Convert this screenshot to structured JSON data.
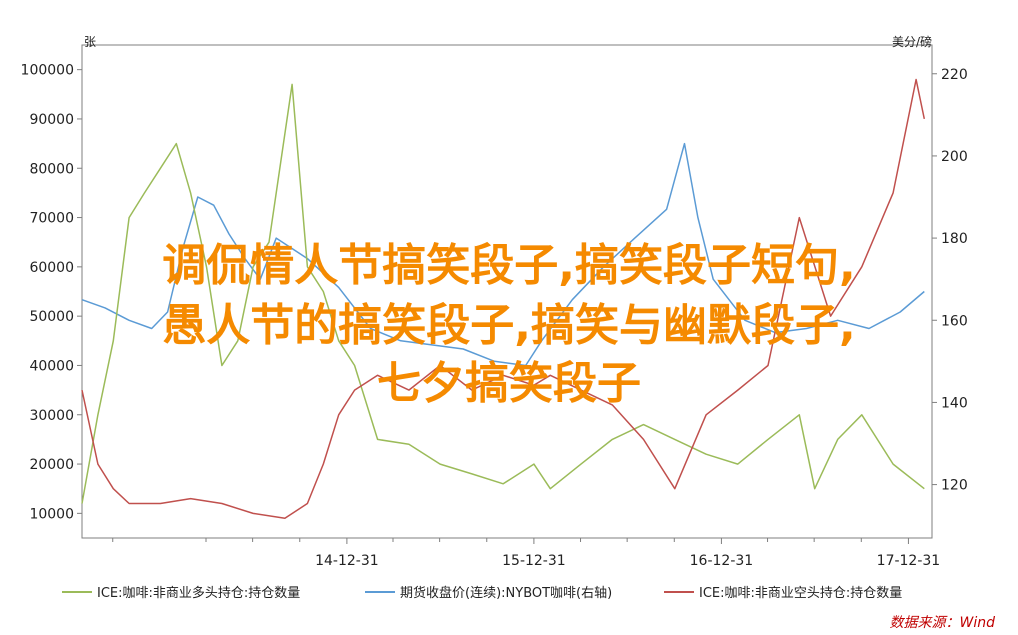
{
  "overlay": {
    "line1": "调侃情人节搞笑段子,搞笑段子短句,",
    "line2": "愚人节的搞笑段子,搞笑与幽默段子,",
    "line3": "七夕搞笑段子"
  },
  "source": "数据来源：Wind",
  "chart_data": {
    "type": "line",
    "x_ticks": [
      "14-12-31",
      "15-12-31",
      "16-12-31",
      "17-12-31"
    ],
    "xlim": [
      "2013-08-01",
      "2018-02-15"
    ],
    "left_axis": {
      "unit": "张",
      "ylim": [
        5000,
        105000
      ],
      "ticks": [
        10000,
        20000,
        30000,
        40000,
        50000,
        60000,
        70000,
        80000,
        90000,
        100000
      ]
    },
    "right_axis": {
      "unit": "美分/磅",
      "ylim": [
        107,
        227
      ],
      "ticks": [
        120,
        140,
        160,
        180,
        200,
        220
      ]
    },
    "series": [
      {
        "name": "期货收盘价(连续):NYBOT咖啡(右轴)",
        "axis": "right",
        "color": "#5b9bd5",
        "points": [
          [
            "2013-08-01",
            165
          ],
          [
            "2013-09-15",
            163
          ],
          [
            "2013-11-01",
            160
          ],
          [
            "2013-12-15",
            158
          ],
          [
            "2014-01-15",
            162
          ],
          [
            "2014-02-15",
            178
          ],
          [
            "2014-03-15",
            190
          ],
          [
            "2014-04-15",
            188
          ],
          [
            "2014-05-15",
            181
          ],
          [
            "2014-06-15",
            175
          ],
          [
            "2014-07-15",
            170
          ],
          [
            "2014-08-15",
            180
          ],
          [
            "2014-10-15",
            175
          ],
          [
            "2014-12-15",
            168
          ],
          [
            "2015-02-15",
            158
          ],
          [
            "2015-04-15",
            155
          ],
          [
            "2015-06-15",
            154
          ],
          [
            "2015-08-15",
            153
          ],
          [
            "2015-10-15",
            150
          ],
          [
            "2015-12-15",
            149
          ],
          [
            "2016-01-15",
            155
          ],
          [
            "2016-03-15",
            165
          ],
          [
            "2016-05-15",
            173
          ],
          [
            "2016-07-15",
            180
          ],
          [
            "2016-09-15",
            187
          ],
          [
            "2016-10-20",
            203
          ],
          [
            "2016-11-15",
            185
          ],
          [
            "2016-12-15",
            170
          ],
          [
            "2017-02-15",
            160
          ],
          [
            "2017-04-15",
            157
          ],
          [
            "2017-06-15",
            158
          ],
          [
            "2017-08-15",
            160
          ],
          [
            "2017-10-15",
            158
          ],
          [
            "2017-12-15",
            162
          ],
          [
            "2018-01-31",
            167
          ]
        ]
      },
      {
        "name": "ICE:咖啡:非商业多头持仓:持仓数量",
        "axis": "left",
        "color": "#9bbb59",
        "points": [
          [
            "2013-08-01",
            12000
          ],
          [
            "2013-09-01",
            30000
          ],
          [
            "2013-10-01",
            45000
          ],
          [
            "2013-11-01",
            70000
          ],
          [
            "2013-12-01",
            75000
          ],
          [
            "2014-01-01",
            80000
          ],
          [
            "2014-02-01",
            85000
          ],
          [
            "2014-03-01",
            75000
          ],
          [
            "2014-04-01",
            60000
          ],
          [
            "2014-05-01",
            40000
          ],
          [
            "2014-06-01",
            45000
          ],
          [
            "2014-07-01",
            60000
          ],
          [
            "2014-08-01",
            65000
          ],
          [
            "2014-09-15",
            97000
          ],
          [
            "2014-10-15",
            60000
          ],
          [
            "2014-11-15",
            55000
          ],
          [
            "2014-12-15",
            45000
          ],
          [
            "2015-01-15",
            40000
          ],
          [
            "2015-03-01",
            25000
          ],
          [
            "2015-05-01",
            24000
          ],
          [
            "2015-07-01",
            20000
          ],
          [
            "2015-09-01",
            18000
          ],
          [
            "2015-11-01",
            16000
          ],
          [
            "2015-12-31",
            20000
          ],
          [
            "2016-02-01",
            15000
          ],
          [
            "2016-04-01",
            20000
          ],
          [
            "2016-06-01",
            25000
          ],
          [
            "2016-08-01",
            28000
          ],
          [
            "2016-10-01",
            25000
          ],
          [
            "2016-12-01",
            22000
          ],
          [
            "2017-02-01",
            20000
          ],
          [
            "2017-04-01",
            25000
          ],
          [
            "2017-06-01",
            30000
          ],
          [
            "2017-07-01",
            15000
          ],
          [
            "2017-08-15",
            25000
          ],
          [
            "2017-10-01",
            30000
          ],
          [
            "2017-12-01",
            20000
          ],
          [
            "2018-01-31",
            15000
          ]
        ]
      },
      {
        "name": "ICE:咖啡:非商业空头持仓:持仓数量",
        "axis": "left",
        "color": "#c0504d",
        "points": [
          [
            "2013-08-01",
            35000
          ],
          [
            "2013-09-01",
            20000
          ],
          [
            "2013-10-01",
            15000
          ],
          [
            "2013-11-01",
            12000
          ],
          [
            "2014-01-01",
            12000
          ],
          [
            "2014-03-01",
            13000
          ],
          [
            "2014-05-01",
            12000
          ],
          [
            "2014-07-01",
            10000
          ],
          [
            "2014-09-01",
            9000
          ],
          [
            "2014-10-15",
            12000
          ],
          [
            "2014-11-15",
            20000
          ],
          [
            "2014-12-15",
            30000
          ],
          [
            "2015-01-15",
            35000
          ],
          [
            "2015-03-01",
            38000
          ],
          [
            "2015-05-01",
            35000
          ],
          [
            "2015-07-01",
            40000
          ],
          [
            "2015-09-01",
            35000
          ],
          [
            "2015-11-01",
            38000
          ],
          [
            "2015-12-31",
            36000
          ],
          [
            "2016-02-01",
            38000
          ],
          [
            "2016-04-01",
            35000
          ],
          [
            "2016-06-01",
            32000
          ],
          [
            "2016-08-01",
            25000
          ],
          [
            "2016-10-01",
            15000
          ],
          [
            "2016-12-01",
            30000
          ],
          [
            "2017-02-01",
            35000
          ],
          [
            "2017-04-01",
            40000
          ],
          [
            "2017-06-01",
            70000
          ],
          [
            "2017-08-01",
            50000
          ],
          [
            "2017-10-01",
            60000
          ],
          [
            "2017-12-01",
            75000
          ],
          [
            "2018-01-15",
            98000
          ],
          [
            "2018-01-31",
            90000
          ]
        ]
      }
    ],
    "legend": {
      "placement": "bottom"
    }
  }
}
